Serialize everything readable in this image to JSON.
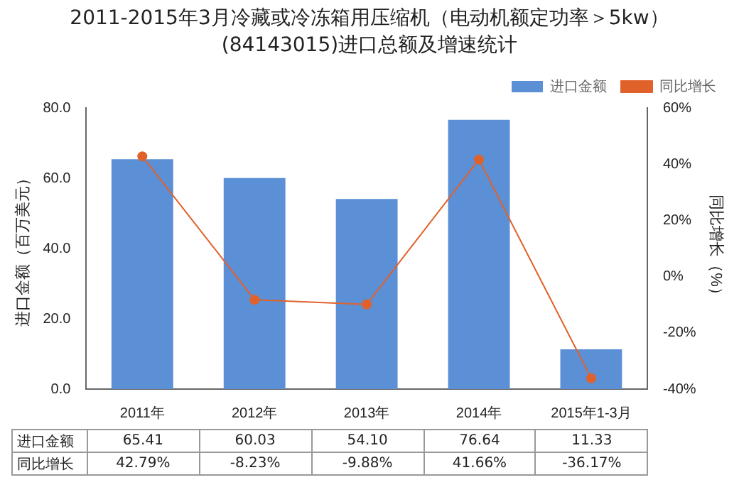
{
  "chart_data": {
    "type": "bar",
    "title": "2011-2015年3月冷藏或冷冻箱用压缩机（电动机额定功率＞5kw）(84143015)进口总额及增速统计",
    "ylabel": "进口金额（百万美元）",
    "y2label": "同比增长（%）",
    "categories": [
      "2011年",
      "2012年",
      "2013年",
      "2014年",
      "2015年1-3月"
    ],
    "series": [
      {
        "name": "进口金额",
        "color": "#5b8fd6",
        "values": [
          65.41,
          60.03,
          54.1,
          76.64,
          11.33
        ],
        "value_labels": [
          "65.41",
          "60.03",
          "54.10",
          "76.64",
          "11.33"
        ]
      },
      {
        "name": "同比增长",
        "type": "line",
        "axis": "y2",
        "color": "#e0622a",
        "marker": "circle",
        "values": [
          42.79,
          -8.23,
          -9.88,
          41.66,
          -36.17
        ],
        "value_labels": [
          "42.79%",
          "-8.23%",
          "-9.88%",
          "41.66%",
          "-36.17%"
        ]
      }
    ],
    "ylim": [
      0,
      80
    ],
    "yticks": [
      {
        "value": 0,
        "label": "0.0"
      },
      {
        "value": 20,
        "label": "20.0"
      },
      {
        "value": 40,
        "label": "40.0"
      },
      {
        "value": 60,
        "label": "60.0"
      },
      {
        "value": 80,
        "label": "80.0"
      }
    ],
    "y2lim": [
      -40,
      60
    ],
    "y2ticks": [
      {
        "value": -40,
        "label": "-40%"
      },
      {
        "value": -20,
        "label": "-20%"
      },
      {
        "value": 0,
        "label": "0%"
      },
      {
        "value": 20,
        "label": "20%"
      },
      {
        "value": 40,
        "label": "40%"
      },
      {
        "value": 60,
        "label": "60%"
      }
    ],
    "legend": "top right",
    "grid": false
  }
}
